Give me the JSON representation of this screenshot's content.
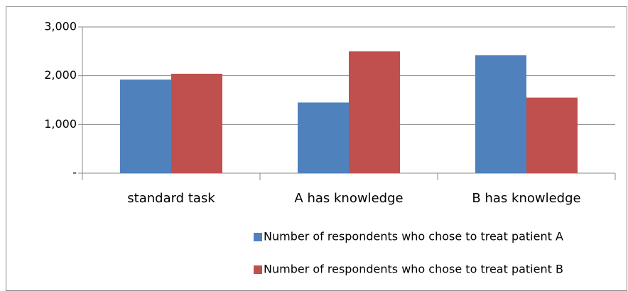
{
  "chart_data": {
    "type": "bar",
    "categories": [
      "standard task",
      "A has knowledge",
      "B has knowledge"
    ],
    "series": [
      {
        "name": "Number of respondents who chose to treat patient A",
        "color": "#4f81bd",
        "values": [
          1920,
          1450,
          2420
        ]
      },
      {
        "name": "Number of respondents who chose to treat patient B",
        "color": "#c0504d",
        "values": [
          2040,
          2500,
          1550
        ]
      }
    ],
    "ylim": [
      0,
      3000
    ],
    "yticks": [
      {
        "value": 0,
        "label": "-"
      },
      {
        "value": 1000,
        "label": "1,000"
      },
      {
        "value": 2000,
        "label": "2,000"
      },
      {
        "value": 3000,
        "label": "3,000"
      }
    ],
    "grid": true,
    "legend": "bottom"
  }
}
